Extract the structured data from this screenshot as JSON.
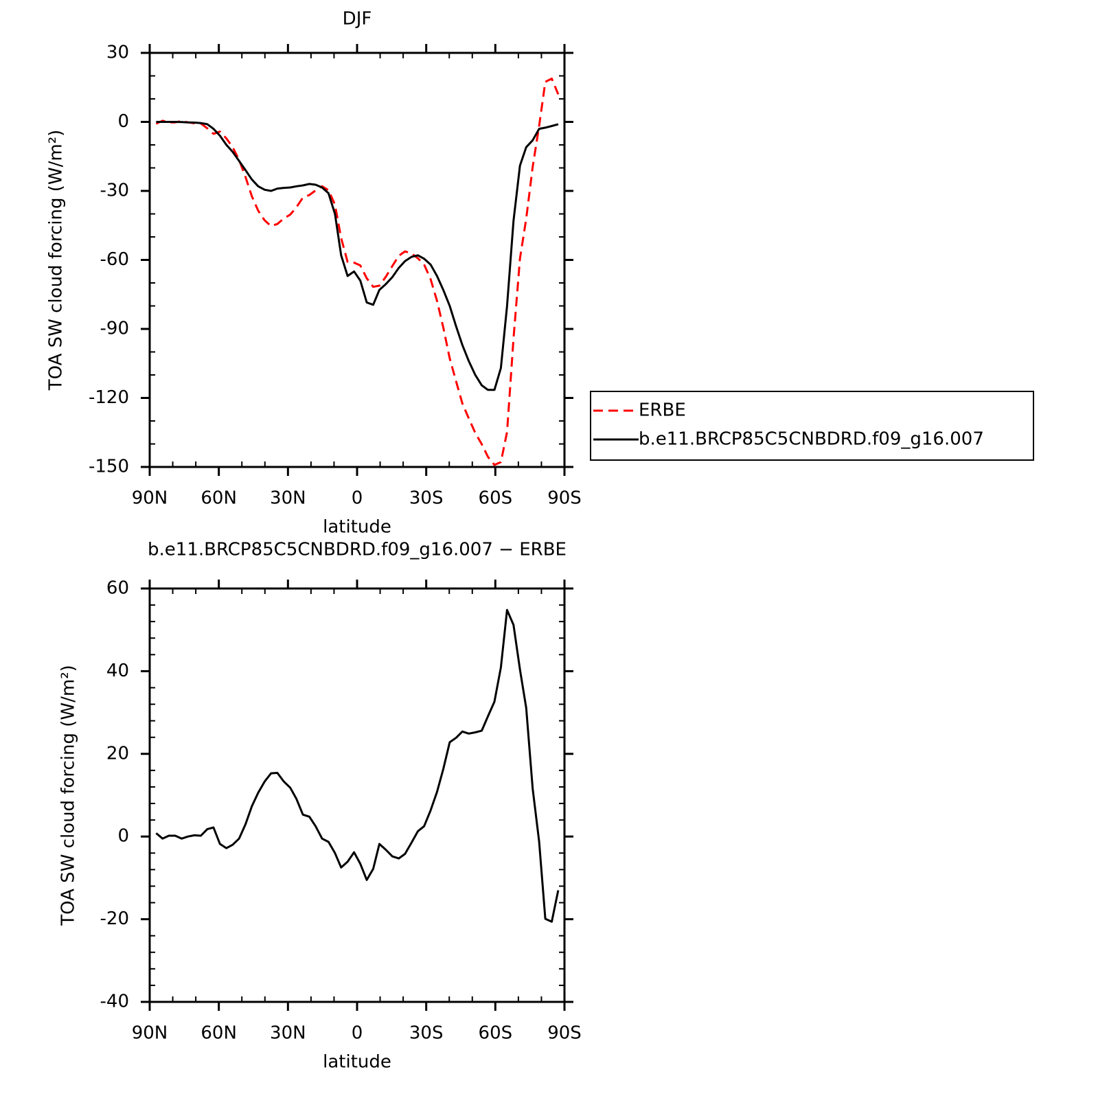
{
  "chart_data": [
    {
      "type": "line",
      "title": "DJF",
      "x_label": "latitude",
      "y_label": "TOA SW cloud forcing (W/m²)",
      "x": [
        87.2,
        84.4,
        81.7,
        78.9,
        76.1,
        73.4,
        70.6,
        67.8,
        65.0,
        62.3,
        59.5,
        56.7,
        54.0,
        51.2,
        48.4,
        45.7,
        42.9,
        40.1,
        37.3,
        34.6,
        31.8,
        29.0,
        26.3,
        23.5,
        20.7,
        18.0,
        15.2,
        12.4,
        9.6,
        6.9,
        4.1,
        1.3,
        -1.4,
        -4.2,
        -7.0,
        -9.7,
        -12.5,
        -15.3,
        -18.1,
        -20.8,
        -23.6,
        -26.4,
        -29.1,
        -31.9,
        -34.7,
        -37.4,
        -40.2,
        -43.0,
        -45.7,
        -48.5,
        -51.3,
        -54.1,
        -56.8,
        -59.6,
        -62.4,
        -65.1,
        -67.9,
        -70.7,
        -73.4,
        -76.2,
        -79.0,
        -81.7,
        -84.5,
        -87.3
      ],
      "xlim": [
        90,
        -90
      ],
      "xticks": [
        {
          "value": 90,
          "label": "90N"
        },
        {
          "value": 60,
          "label": "60N"
        },
        {
          "value": 30,
          "label": "30N"
        },
        0,
        {
          "value": -30,
          "label": "30S"
        },
        {
          "value": -60,
          "label": "60S"
        },
        {
          "value": -90,
          "label": "90S"
        }
      ],
      "ylim": [
        -150,
        30
      ],
      "yticks": [
        -150,
        -120,
        -90,
        -60,
        -30,
        0,
        30
      ],
      "legend": "right",
      "series": [
        {
          "name": "ERBE",
          "color": "#ff0000",
          "line_style": "dashed",
          "values": [
            -0.8,
            0.5,
            -0.2,
            -0.2,
            0.4,
            -0.2,
            -0.6,
            -0.7,
            -2.8,
            -5.2,
            -4.2,
            -7.2,
            -11,
            -16.5,
            -24,
            -32.3,
            -38.6,
            -42.8,
            -45.3,
            -44.4,
            -42,
            -40.3,
            -37.1,
            -32.9,
            -31.8,
            -29.8,
            -28,
            -29.7,
            -36,
            -50.5,
            -60.9,
            -61.2,
            -62.4,
            -68,
            -71.7,
            -71.2,
            -67.3,
            -62.7,
            -58.2,
            -56.3,
            -57.2,
            -59.3,
            -62,
            -68.3,
            -77.8,
            -89.3,
            -102.8,
            -112.9,
            -122.4,
            -128.9,
            -135.2,
            -140.1,
            -145.6,
            -149.1,
            -147.9,
            -134.8,
            -94.2,
            -59.4,
            -42.1,
            -19.6,
            -1.8,
            17.4,
            18.8,
            12
          ]
        },
        {
          "name": "b.e11.BRCP85C5CNBDRD.f09_g16.007",
          "color": "#000000",
          "line_style": "solid",
          "values": [
            0,
            0,
            0,
            0,
            -0.1,
            -0.2,
            -0.3,
            -0.5,
            -1,
            -3,
            -6,
            -10,
            -13,
            -17,
            -21,
            -25,
            -28,
            -29.5,
            -30,
            -29,
            -28.7,
            -28.5,
            -28,
            -27.6,
            -27,
            -27.3,
            -28.5,
            -31,
            -40,
            -58,
            -67,
            -65,
            -69,
            -78.5,
            -79.5,
            -73,
            -70.5,
            -67.5,
            -63.5,
            -60.5,
            -58.7,
            -58,
            -59.5,
            -62,
            -67,
            -73,
            -80,
            -89,
            -97,
            -104,
            -110,
            -114.5,
            -116.5,
            -116.5,
            -107,
            -80,
            -43,
            -19,
            -11,
            -8,
            -3,
            -2.5,
            -1.8,
            -1
          ]
        }
      ]
    },
    {
      "type": "line",
      "title": "b.e11.BRCP85C5CNBDRD.f09_g16.007 − ERBE",
      "x_label": "latitude",
      "y_label": "TOA SW cloud forcing (W/m²)",
      "x": [
        87.2,
        84.4,
        81.7,
        78.9,
        76.1,
        73.4,
        70.6,
        67.8,
        65.0,
        62.3,
        59.5,
        56.7,
        54.0,
        51.2,
        48.4,
        45.7,
        42.9,
        40.1,
        37.3,
        34.6,
        31.8,
        29.0,
        26.3,
        23.5,
        20.7,
        18.0,
        15.2,
        12.4,
        9.6,
        6.9,
        4.1,
        1.3,
        -1.4,
        -4.2,
        -7.0,
        -9.7,
        -12.5,
        -15.3,
        -18.1,
        -20.8,
        -23.6,
        -26.4,
        -29.1,
        -31.9,
        -34.7,
        -37.4,
        -40.2,
        -43.0,
        -45.7,
        -48.5,
        -51.3,
        -54.1,
        -56.8,
        -59.6,
        -62.4,
        -65.1,
        -67.9,
        -70.7,
        -73.4,
        -76.2,
        -79.0,
        -81.7,
        -84.5,
        -87.3
      ],
      "xlim": [
        90,
        -90
      ],
      "xticks": [
        {
          "value": 90,
          "label": "90N"
        },
        {
          "value": 60,
          "label": "60N"
        },
        {
          "value": 30,
          "label": "30N"
        },
        0,
        {
          "value": -30,
          "label": "30S"
        },
        {
          "value": -60,
          "label": "60S"
        },
        {
          "value": -90,
          "label": "90S"
        }
      ],
      "ylim": [
        -40,
        60
      ],
      "yticks": [
        -40,
        -20,
        0,
        20,
        40,
        60
      ],
      "series": [
        {
          "color": "#000000",
          "line_style": "solid",
          "values": [
            0.8,
            -0.5,
            0.2,
            0.2,
            -0.5,
            0,
            0.3,
            0.2,
            1.8,
            2.2,
            -1.8,
            -2.8,
            -2,
            -0.5,
            3,
            7.3,
            10.6,
            13.3,
            15.3,
            15.4,
            13.3,
            11.8,
            9.1,
            5.3,
            4.8,
            2.5,
            -0.5,
            -1.3,
            -4,
            -7.5,
            -6.1,
            -3.8,
            -6.6,
            -10.5,
            -7.8,
            -1.8,
            -3.2,
            -4.8,
            -5.3,
            -4.2,
            -1.5,
            1.3,
            2.5,
            6.3,
            10.8,
            16.3,
            22.8,
            23.9,
            25.4,
            24.9,
            25.2,
            25.6,
            29.1,
            32.6,
            40.9,
            54.8,
            51.2,
            40.4,
            31.1,
            11.6,
            -1.2,
            -19.9,
            -20.6,
            -13
          ]
        }
      ]
    }
  ]
}
